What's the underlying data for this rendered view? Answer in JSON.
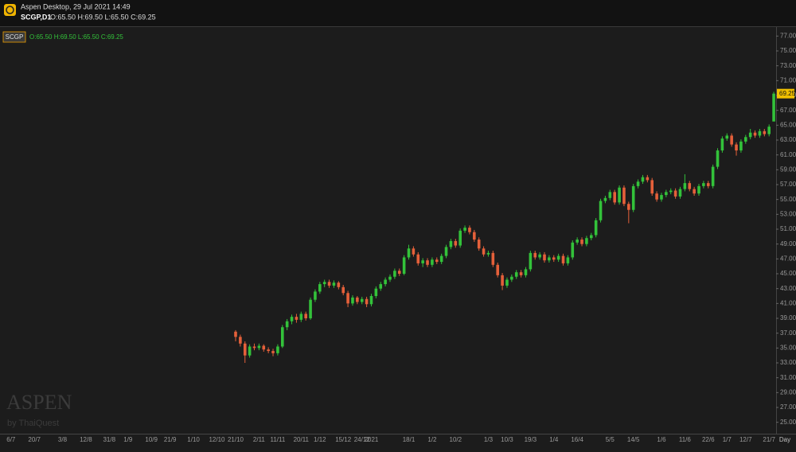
{
  "header": {
    "app_title": "Aspen Desktop, 29 Jul 2021 14:49",
    "symbol_line": "SCGP,D1",
    "ohlc_line": "O:65.50 H:69.50 L:65.50 C:69.25"
  },
  "watermark": {
    "brand": "ASPEN",
    "sub": "by ThaiQuest"
  },
  "chart_data": {
    "type": "candlestick",
    "legend_symbol": "SCGP",
    "legend_ohlc": "O:65.50 H:69.50 L:65.50 C:69.25",
    "x_unit_label": "Day",
    "up_color": "#33c23a",
    "down_color": "#e5603a",
    "last_price": {
      "value": 69.25,
      "label": "69.25"
    },
    "ylim": [
      24,
      78
    ],
    "yticks": [
      {
        "value": 25,
        "label": "25.00"
      },
      {
        "value": 27,
        "label": "27.00"
      },
      {
        "value": 29,
        "label": "29.00"
      },
      {
        "value": 31,
        "label": "31.00"
      },
      {
        "value": 33,
        "label": "33.00"
      },
      {
        "value": 35,
        "label": "35.00"
      },
      {
        "value": 37,
        "label": "37.00"
      },
      {
        "value": 39,
        "label": "39.00"
      },
      {
        "value": 41,
        "label": "41.00"
      },
      {
        "value": 43,
        "label": "43.00"
      },
      {
        "value": 45,
        "label": "45.00"
      },
      {
        "value": 47,
        "label": "47.00"
      },
      {
        "value": 49,
        "label": "49.00"
      },
      {
        "value": 51,
        "label": "51.00"
      },
      {
        "value": 53,
        "label": "53.00"
      },
      {
        "value": 55,
        "label": "55.00"
      },
      {
        "value": 57,
        "label": "57.00"
      },
      {
        "value": 59,
        "label": "59.00"
      },
      {
        "value": 61,
        "label": "61.00"
      },
      {
        "value": 63,
        "label": "63.00"
      },
      {
        "value": 65,
        "label": "65.00"
      },
      {
        "value": 67,
        "label": "67.00"
      },
      {
        "value": 69,
        "label": "69.00"
      },
      {
        "value": 71,
        "label": "71.00"
      },
      {
        "value": 73,
        "label": "73.00"
      },
      {
        "value": 75,
        "label": "75.00"
      },
      {
        "value": 77,
        "label": "77.00"
      }
    ],
    "categories": [
      null,
      "6/7",
      null,
      null,
      null,
      null,
      "20/7",
      null,
      null,
      null,
      null,
      null,
      "3/8",
      null,
      null,
      null,
      null,
      "12/8",
      null,
      null,
      null,
      null,
      "31/8",
      null,
      null,
      null,
      "1/9",
      null,
      null,
      null,
      null,
      "10/9",
      null,
      null,
      null,
      "21/9",
      null,
      null,
      null,
      null,
      "1/10",
      null,
      null,
      null,
      null,
      "12/10",
      null,
      null,
      null,
      "21/10",
      null,
      null,
      null,
      null,
      "2/11",
      null,
      null,
      null,
      "11/11",
      null,
      null,
      null,
      null,
      "20/11",
      null,
      null,
      null,
      "1/12",
      null,
      null,
      null,
      null,
      "15/12",
      null,
      null,
      null,
      "24/12",
      null,
      "2021",
      null,
      null,
      null,
      null,
      null,
      null,
      null,
      "18/1",
      null,
      null,
      null,
      null,
      "1/2",
      null,
      null,
      null,
      null,
      "10/2",
      null,
      null,
      null,
      null,
      null,
      null,
      "1/3",
      null,
      null,
      null,
      "10/3",
      null,
      null,
      null,
      null,
      "19/3",
      null,
      null,
      null,
      null,
      "1/4",
      null,
      null,
      null,
      null,
      "16/4",
      null,
      null,
      null,
      null,
      null,
      null,
      "5/5",
      null,
      null,
      null,
      null,
      "14/5",
      null,
      null,
      null,
      null,
      null,
      "1/6",
      null,
      null,
      null,
      null,
      "11/6",
      null,
      null,
      null,
      null,
      "22/6",
      null,
      null,
      null,
      "1/7",
      null,
      null,
      null,
      "12/7",
      null,
      null,
      null,
      null,
      "21/7",
      null
    ],
    "ohlc": [
      null,
      null,
      null,
      null,
      null,
      null,
      null,
      null,
      null,
      null,
      null,
      null,
      null,
      null,
      null,
      null,
      null,
      null,
      null,
      null,
      null,
      null,
      null,
      null,
      null,
      null,
      null,
      null,
      null,
      null,
      null,
      null,
      null,
      null,
      null,
      null,
      null,
      null,
      null,
      null,
      null,
      null,
      null,
      null,
      null,
      null,
      null,
      null,
      null,
      [
        37.2,
        37.4,
        35.9,
        36.5
      ],
      [
        36.5,
        36.8,
        35.2,
        35.6
      ],
      [
        35.6,
        35.9,
        33.0,
        34.0
      ],
      [
        34.0,
        35.5,
        33.7,
        35.2
      ],
      [
        35.2,
        35.6,
        34.7,
        35.0
      ],
      [
        35.0,
        35.6,
        34.7,
        35.3
      ],
      [
        35.3,
        35.5,
        34.5,
        34.8
      ],
      [
        34.8,
        35.1,
        34.3,
        34.6
      ],
      [
        34.6,
        34.9,
        33.9,
        34.3
      ],
      [
        34.3,
        35.5,
        34.0,
        35.2
      ],
      [
        35.2,
        38.1,
        35.0,
        37.8
      ],
      [
        37.8,
        38.9,
        37.4,
        38.6
      ],
      [
        38.6,
        39.5,
        38.2,
        39.2
      ],
      [
        39.2,
        39.6,
        38.4,
        38.8
      ],
      [
        38.8,
        39.9,
        38.5,
        39.6
      ],
      [
        39.6,
        39.9,
        38.7,
        39.0
      ],
      [
        39.0,
        41.8,
        38.8,
        41.5
      ],
      [
        41.5,
        42.9,
        41.2,
        42.6
      ],
      [
        42.6,
        43.9,
        42.3,
        43.6
      ],
      [
        43.6,
        44.2,
        43.2,
        43.9
      ],
      [
        43.9,
        44.2,
        43.1,
        43.4
      ],
      [
        43.4,
        44.1,
        43.1,
        43.8
      ],
      [
        43.8,
        44.0,
        42.9,
        43.2
      ],
      [
        43.2,
        43.5,
        42.1,
        42.4
      ],
      [
        42.4,
        42.7,
        40.5,
        41.0
      ],
      [
        41.0,
        42.1,
        40.7,
        41.8
      ],
      [
        41.8,
        42.0,
        40.9,
        41.2
      ],
      [
        41.2,
        41.9,
        40.9,
        41.6
      ],
      [
        41.6,
        41.9,
        40.5,
        40.9
      ],
      [
        40.9,
        42.3,
        40.6,
        42.0
      ],
      [
        42.0,
        43.3,
        41.7,
        43.0
      ],
      [
        43.0,
        43.9,
        42.7,
        43.6
      ],
      [
        43.6,
        44.5,
        43.3,
        44.2
      ],
      [
        44.2,
        44.9,
        43.9,
        44.6
      ],
      [
        44.6,
        45.7,
        44.3,
        45.4
      ],
      [
        45.4,
        45.7,
        44.7,
        45.0
      ],
      [
        45.0,
        47.5,
        44.8,
        47.2
      ],
      [
        47.2,
        48.9,
        46.9,
        48.4
      ],
      [
        48.4,
        48.7,
        47.3,
        47.6
      ],
      [
        47.6,
        47.9,
        46.1,
        46.4
      ],
      [
        46.4,
        47.1,
        45.9,
        46.8
      ],
      [
        46.8,
        47.1,
        45.9,
        46.2
      ],
      [
        46.2,
        47.2,
        45.9,
        46.9
      ],
      [
        46.9,
        47.2,
        46.3,
        46.6
      ],
      [
        46.6,
        47.7,
        46.3,
        47.4
      ],
      [
        47.4,
        48.9,
        47.1,
        48.6
      ],
      [
        48.6,
        49.7,
        48.3,
        49.4
      ],
      [
        49.4,
        49.7,
        48.5,
        48.8
      ],
      [
        48.8,
        51.1,
        48.5,
        50.8
      ],
      [
        50.8,
        51.5,
        50.5,
        51.2
      ],
      [
        51.2,
        51.5,
        50.3,
        50.6
      ],
      [
        50.6,
        50.9,
        49.3,
        49.6
      ],
      [
        49.6,
        49.9,
        48.1,
        48.4
      ],
      [
        48.4,
        48.7,
        47.3,
        47.6
      ],
      [
        47.6,
        48.1,
        47.3,
        47.8
      ],
      [
        47.8,
        48.1,
        45.9,
        46.2
      ],
      [
        46.2,
        46.5,
        44.5,
        44.8
      ],
      [
        44.8,
        45.1,
        42.8,
        43.4
      ],
      [
        43.4,
        44.5,
        43.1,
        44.2
      ],
      [
        44.2,
        44.9,
        43.9,
        44.6
      ],
      [
        44.6,
        45.5,
        44.3,
        45.2
      ],
      [
        45.2,
        45.5,
        44.5,
        44.8
      ],
      [
        44.8,
        45.9,
        44.5,
        45.6
      ],
      [
        45.6,
        48.1,
        45.3,
        47.8
      ],
      [
        47.8,
        48.1,
        46.9,
        47.2
      ],
      [
        47.2,
        47.9,
        46.9,
        47.6
      ],
      [
        47.6,
        47.9,
        46.5,
        46.8
      ],
      [
        46.8,
        47.5,
        46.5,
        47.2
      ],
      [
        47.2,
        47.5,
        46.6,
        46.9
      ],
      [
        46.9,
        47.7,
        46.6,
        47.4
      ],
      [
        47.4,
        47.7,
        46.1,
        46.4
      ],
      [
        46.4,
        47.5,
        46.1,
        47.2
      ],
      [
        47.2,
        49.5,
        46.9,
        49.2
      ],
      [
        49.2,
        49.9,
        48.9,
        49.6
      ],
      [
        49.6,
        49.9,
        48.7,
        49.0
      ],
      [
        49.0,
        50.1,
        48.7,
        49.8
      ],
      [
        49.8,
        50.5,
        49.5,
        50.2
      ],
      [
        50.2,
        52.5,
        49.9,
        52.2
      ],
      [
        52.2,
        55.1,
        51.9,
        54.8
      ],
      [
        54.8,
        55.5,
        54.5,
        55.2
      ],
      [
        55.2,
        56.3,
        54.9,
        56.0
      ],
      [
        56.0,
        56.3,
        54.3,
        54.6
      ],
      [
        54.6,
        56.9,
        54.3,
        56.6
      ],
      [
        56.6,
        56.9,
        54.1,
        54.4
      ],
      [
        54.4,
        54.7,
        51.8,
        53.6
      ],
      [
        53.6,
        57.1,
        53.3,
        56.8
      ],
      [
        56.8,
        57.7,
        56.5,
        57.4
      ],
      [
        57.4,
        58.3,
        57.1,
        58.0
      ],
      [
        58.0,
        58.3,
        57.3,
        57.6
      ],
      [
        57.6,
        57.9,
        55.5,
        55.8
      ],
      [
        55.8,
        56.1,
        54.7,
        55.0
      ],
      [
        55.0,
        55.9,
        54.7,
        55.6
      ],
      [
        55.6,
        56.3,
        55.3,
        56.0
      ],
      [
        56.0,
        56.5,
        55.7,
        56.2
      ],
      [
        56.2,
        56.5,
        55.1,
        55.4
      ],
      [
        55.4,
        56.7,
        55.1,
        56.4
      ],
      [
        56.4,
        58.4,
        56.1,
        57.2
      ],
      [
        57.2,
        57.5,
        56.1,
        56.4
      ],
      [
        56.4,
        56.7,
        55.5,
        55.8
      ],
      [
        55.8,
        57.1,
        55.5,
        56.8
      ],
      [
        56.8,
        57.5,
        56.5,
        57.2
      ],
      [
        57.2,
        57.5,
        56.5,
        56.8
      ],
      [
        56.8,
        59.7,
        56.5,
        59.4
      ],
      [
        59.4,
        61.9,
        59.1,
        61.6
      ],
      [
        61.6,
        63.5,
        61.3,
        63.2
      ],
      [
        63.2,
        63.9,
        62.9,
        63.6
      ],
      [
        63.6,
        63.9,
        62.1,
        62.4
      ],
      [
        62.4,
        62.7,
        60.9,
        61.6
      ],
      [
        61.6,
        63.1,
        61.3,
        62.8
      ],
      [
        62.8,
        63.7,
        62.5,
        63.4
      ],
      [
        63.4,
        64.5,
        63.1,
        64.0
      ],
      [
        64.0,
        64.3,
        63.3,
        63.6
      ],
      [
        63.6,
        64.5,
        63.3,
        64.2
      ],
      [
        64.2,
        64.5,
        63.5,
        63.8
      ],
      [
        63.8,
        65.1,
        63.5,
        64.8
      ],
      [
        65.5,
        69.5,
        65.5,
        69.25
      ]
    ]
  }
}
